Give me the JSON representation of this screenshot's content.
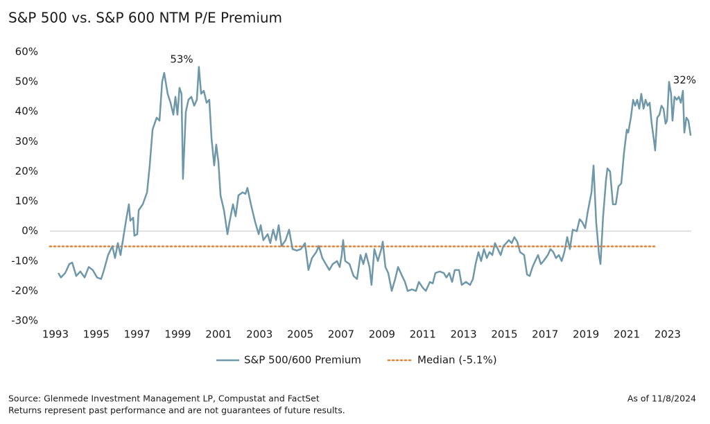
{
  "chart_data": {
    "type": "line",
    "title": "S&P 500 vs. S&P 600 NTM P/E Premium",
    "annotations": [
      "53%",
      "32%"
    ],
    "source": "Source: Glenmede Investment Management LP, Compustat and FactSet",
    "note": "Returns represent past performance and are not guarantees of future results.",
    "as_of": "As of 11/8/2024",
    "xlim": [
      1992.73,
      2024.16
    ],
    "xticks": [
      1993,
      1995,
      1997,
      1999,
      2001,
      2003,
      2005,
      2007,
      2009,
      2011,
      2013,
      2015,
      2017,
      2019,
      2021,
      2023
    ],
    "ylim": [
      -30,
      60
    ],
    "yticks": [
      {
        "value": -30,
        "label": "-30%"
      },
      {
        "value": -20,
        "label": "-20%"
      },
      {
        "value": -10,
        "label": "-10%"
      },
      {
        "value": 0,
        "label": "0%"
      },
      {
        "value": 10,
        "label": "10%"
      },
      {
        "value": 20,
        "label": "20%"
      },
      {
        "value": 30,
        "label": "30%"
      },
      {
        "value": 40,
        "label": "40%"
      },
      {
        "value": 50,
        "label": "50%"
      },
      {
        "value": 60,
        "label": "60%"
      }
    ],
    "grid": false,
    "legend": "bottom",
    "series": [
      {
        "name": "S&P 500/600 Premium",
        "color": "#6e97a9",
        "x": [
          1993.14,
          1993.27,
          1993.48,
          1993.68,
          1993.82,
          1994.02,
          1994.22,
          1994.43,
          1994.63,
          1994.83,
          1995.04,
          1995.24,
          1995.38,
          1995.58,
          1995.79,
          1995.92,
          1996.06,
          1996.19,
          1996.33,
          1996.47,
          1996.6,
          1996.67,
          1996.81,
          1996.87,
          1997.01,
          1997.08,
          1997.28,
          1997.49,
          1997.62,
          1997.76,
          1997.96,
          1998.1,
          1998.23,
          1998.33,
          1998.5,
          1998.64,
          1998.78,
          1998.88,
          1998.98,
          1999.08,
          1999.18,
          1999.25,
          1999.39,
          1999.52,
          1999.66,
          1999.8,
          1999.93,
          2000.03,
          2000.14,
          2000.27,
          2000.41,
          2000.54,
          2000.65,
          2000.78,
          2000.88,
          2000.99,
          2001.09,
          2001.26,
          2001.43,
          2001.53,
          2001.7,
          2001.83,
          2001.97,
          2002.17,
          2002.31,
          2002.41,
          2002.58,
          2002.79,
          2002.96,
          2003.06,
          2003.19,
          2003.4,
          2003.53,
          2003.67,
          2003.81,
          2003.94,
          2004.08,
          2004.28,
          2004.45,
          2004.62,
          2004.83,
          2005.03,
          2005.23,
          2005.4,
          2005.57,
          2005.78,
          2005.91,
          2006.08,
          2006.25,
          2006.42,
          2006.59,
          2006.8,
          2006.93,
          2007.03,
          2007.1,
          2007.2,
          2007.41,
          2007.61,
          2007.78,
          2007.95,
          2008.09,
          2008.22,
          2008.39,
          2008.49,
          2008.63,
          2008.8,
          2008.97,
          2009.04,
          2009.17,
          2009.31,
          2009.48,
          2009.65,
          2009.79,
          2009.99,
          2010.13,
          2010.26,
          2010.47,
          2010.67,
          2010.81,
          2011.01,
          2011.15,
          2011.35,
          2011.49,
          2011.62,
          2011.83,
          2012.03,
          2012.16,
          2012.3,
          2012.44,
          2012.57,
          2012.78,
          2012.91,
          2013.12,
          2013.32,
          2013.46,
          2013.59,
          2013.73,
          2013.86,
          2014.0,
          2014.14,
          2014.27,
          2014.41,
          2014.54,
          2014.68,
          2014.82,
          2014.95,
          2015.09,
          2015.22,
          2015.36,
          2015.49,
          2015.63,
          2015.77,
          2015.97,
          2016.11,
          2016.24,
          2016.38,
          2016.51,
          2016.65,
          2016.79,
          2016.92,
          2017.13,
          2017.26,
          2017.4,
          2017.53,
          2017.67,
          2017.81,
          2017.94,
          2018.08,
          2018.21,
          2018.35,
          2018.55,
          2018.69,
          2018.82,
          2018.96,
          2019.1,
          2019.27,
          2019.37,
          2019.5,
          2019.64,
          2019.71,
          2019.84,
          2019.98,
          2020.05,
          2020.18,
          2020.32,
          2020.46,
          2020.59,
          2020.73,
          2020.86,
          2021.0,
          2021.07,
          2021.2,
          2021.31,
          2021.41,
          2021.51,
          2021.61,
          2021.71,
          2021.82,
          2021.92,
          2022.02,
          2022.12,
          2022.22,
          2022.32,
          2022.39,
          2022.49,
          2022.6,
          2022.7,
          2022.8,
          2022.9,
          2022.97,
          2023.07,
          2023.17,
          2023.24,
          2023.34,
          2023.45,
          2023.55,
          2023.65,
          2023.75,
          2023.82,
          2023.92,
          2024.02,
          2024.13
        ],
        "values": [
          -14,
          -15.5,
          -14,
          -11,
          -10.5,
          -15,
          -13.5,
          -15.5,
          -12,
          -13,
          -15.5,
          -16,
          -13,
          -8,
          -5,
          -9,
          -4,
          -8,
          -2,
          4,
          9,
          3.5,
          4.5,
          -1.5,
          -1,
          7,
          9,
          13,
          22,
          34,
          38,
          37,
          50,
          53,
          46,
          43,
          39,
          45,
          39,
          48,
          46,
          17.5,
          40,
          44,
          45,
          42,
          44,
          55,
          46,
          47,
          43,
          44,
          31,
          22,
          29,
          23,
          12,
          7,
          -1,
          3,
          9,
          5,
          12,
          13,
          12.5,
          14.5,
          9,
          3,
          -1,
          2,
          -3,
          -1,
          -4,
          0.5,
          -3,
          2,
          -5,
          -3,
          0.5,
          -6,
          -6.5,
          -6,
          -4,
          -13,
          -9,
          -7,
          -5,
          -9,
          -11,
          -13,
          -11,
          -10,
          -12,
          -8,
          -3,
          -10,
          -11,
          -15,
          -16,
          -8,
          -11,
          -7.5,
          -12,
          -18,
          -6,
          -10,
          -6,
          -3.5,
          -12,
          -14,
          -20,
          -16,
          -12,
          -15,
          -17,
          -20,
          -19.5,
          -20,
          -17,
          -19,
          -20,
          -17,
          -17.5,
          -14,
          -13.5,
          -14,
          -15.5,
          -14,
          -17,
          -13,
          -13,
          -18,
          -17,
          -18,
          -16,
          -11,
          -7,
          -10,
          -6,
          -9,
          -7,
          -8,
          -4,
          -6,
          -8,
          -5,
          -4,
          -3,
          -4,
          -2,
          -3.5,
          -7,
          -8,
          -14.5,
          -15,
          -12,
          -10,
          -8,
          -11,
          -10,
          -8,
          -6,
          -7,
          -9,
          -8,
          -10,
          -7,
          -2,
          -6,
          0.5,
          0,
          4,
          3,
          1,
          7,
          13,
          22,
          3,
          -8,
          -11,
          5,
          17,
          21,
          20,
          9,
          9,
          15,
          16,
          26,
          34,
          33,
          38,
          44,
          42,
          44,
          41,
          46,
          41,
          44,
          42,
          43,
          36,
          31,
          27,
          38,
          39,
          42,
          41,
          36,
          37,
          50,
          46,
          37,
          45,
          44,
          45,
          43,
          47,
          33,
          38,
          37,
          32
        ]
      }
    ],
    "median": {
      "name": "Median (-5.1%)",
      "value": -5.1,
      "x": [
        1992.73,
        2022.39
      ],
      "color": "#ed7d31"
    }
  }
}
